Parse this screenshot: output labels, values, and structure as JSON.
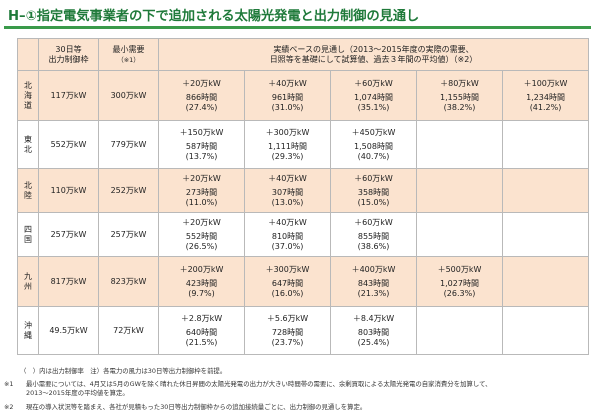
{
  "title": "H–①指定電気事業者の下で追加される太陽光発電と出力制御の見通し",
  "headers": {
    "col1_line1": "30日等",
    "col1_line2": "出力制御枠",
    "col2_line1": "最小需要",
    "col2_line2": "（※1）",
    "col3_line1": "実績ベースの見通し（2013～2015年度の実際の需要、",
    "col3_line2": "日照等を基礎にして試算値、過去３年間の平均値）（※2）"
  },
  "rows": [
    {
      "region": "北海道",
      "limit": "117万kW",
      "min_demand": "300万kW",
      "scenarios": [
        {
          "add": "＋20万kW",
          "hours": "866時間",
          "pct": "(27.4%)"
        },
        {
          "add": "＋40万kW",
          "hours": "961時間",
          "pct": "(31.0%)"
        },
        {
          "add": "＋60万kW",
          "hours": "1,074時間",
          "pct": "(35.1%)"
        },
        {
          "add": "＋80万kW",
          "hours": "1,155時間",
          "pct": "(38.2%)"
        },
        {
          "add": "＋100万kW",
          "hours": "1,234時間",
          "pct": "(41.2%)"
        }
      ]
    },
    {
      "region": "東北",
      "limit": "552万kW",
      "min_demand": "779万kW",
      "scenarios": [
        {
          "add": "＋150万kW",
          "hours": "587時間",
          "pct": "(13.7%)"
        },
        {
          "add": "＋300万kW",
          "hours": "1,111時間",
          "pct": "(29.3%)"
        },
        {
          "add": "＋450万kW",
          "hours": "1,508時間",
          "pct": "(40.7%)"
        },
        {
          "add": "",
          "hours": "",
          "pct": ""
        },
        {
          "add": "",
          "hours": "",
          "pct": ""
        }
      ]
    },
    {
      "region": "北陸",
      "limit": "110万kW",
      "min_demand": "252万kW",
      "scenarios": [
        {
          "add": "＋20万kW",
          "hours": "273時間",
          "pct": "(11.0%)"
        },
        {
          "add": "＋40万kW",
          "hours": "307時間",
          "pct": "(13.0%)"
        },
        {
          "add": "＋60万kW",
          "hours": "358時間",
          "pct": "(15.0%)"
        },
        {
          "add": "",
          "hours": "",
          "pct": ""
        },
        {
          "add": "",
          "hours": "",
          "pct": ""
        }
      ]
    },
    {
      "region": "四国",
      "limit": "257万kW",
      "min_demand": "257万kW",
      "scenarios": [
        {
          "add": "＋20万kW",
          "hours": "552時間",
          "pct": "(26.5%)"
        },
        {
          "add": "＋40万kW",
          "hours": "810時間",
          "pct": "(37.0%)"
        },
        {
          "add": "＋60万kW",
          "hours": "855時間",
          "pct": "(38.6%)"
        },
        {
          "add": "",
          "hours": "",
          "pct": ""
        },
        {
          "add": "",
          "hours": "",
          "pct": ""
        }
      ]
    },
    {
      "region": "九州",
      "limit": "817万kW",
      "min_demand": "823万kW",
      "scenarios": [
        {
          "add": "＋200万kW",
          "hours": "423時間",
          "pct": "(9.7%)"
        },
        {
          "add": "＋300万kW",
          "hours": "647時間",
          "pct": "(16.0%)"
        },
        {
          "add": "＋400万kW",
          "hours": "843時間",
          "pct": "(21.3%)"
        },
        {
          "add": "＋500万kW",
          "hours": "1,027時間",
          "pct": "(26.3%)"
        },
        {
          "add": "",
          "hours": "",
          "pct": ""
        }
      ]
    },
    {
      "region": "沖縄",
      "limit": "49.5万kW",
      "min_demand": "72万kW",
      "scenarios": [
        {
          "add": "＋2.8万kW",
          "hours": "640時間",
          "pct": "(21.5%)"
        },
        {
          "add": "＋5.6万kW",
          "hours": "728時間",
          "pct": "(23.7%)"
        },
        {
          "add": "＋8.4万kW",
          "hours": "803時間",
          "pct": "(25.4%)"
        },
        {
          "add": "",
          "hours": "",
          "pct": ""
        },
        {
          "add": "",
          "hours": "",
          "pct": ""
        }
      ]
    }
  ],
  "legend_note": "（　）内は出力制御率　注）各電力の風力は30日等出力制御枠を前提。",
  "footnotes": [
    {
      "mark": "※1",
      "lines": [
        "最小需要については、4月又は5月のGWを除く晴れた休日昇間の太陽光発電の出力が大きい時間帯の需要に、余剰買取による太陽光発電の自家消費分を加算して、",
        "2013～2015年度の平均値を算定。"
      ]
    },
    {
      "mark": "※2",
      "lines": [
        "現在の導入状況等を踏まえ、各社が見積もった30日等出力制御枠からの追加接続量ごとに、出力制御の見通しを算定。"
      ]
    }
  ]
}
